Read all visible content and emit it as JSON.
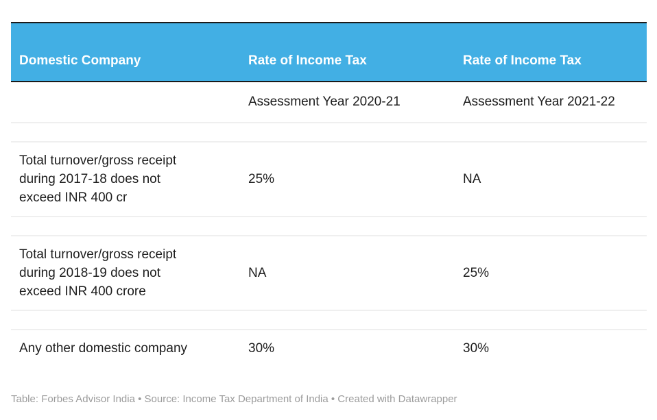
{
  "colors": {
    "header_bg": "#42afe4",
    "header_text": "#ffffff",
    "top_border": "#1a1a1a",
    "header_bottom_border": "#1a1a1a",
    "row_divider": "#efefef",
    "body_text": "#1d1d1d",
    "footer_text": "#9b9b9b",
    "page_bg": "#ffffff"
  },
  "chart_data": {
    "type": "table",
    "title": "",
    "columns": [
      "Domestic Company",
      "Rate of Income Tax",
      "Rate of Income Tax"
    ],
    "subheader": [
      "",
      "Assessment Year 2020-21",
      "Assessment Year 2021-22"
    ],
    "rows": [
      [
        "Total turnover/gross receipt during 2017-18 does not exceed INR 400 cr",
        "25%",
        "NA"
      ],
      [
        "Total turnover/gross receipt during 2018-19 does not exceed INR 400 crore",
        "NA",
        "25%"
      ],
      [
        "Any other domestic company",
        "30%",
        "30%"
      ]
    ],
    "footer": "Table: Forbes Advisor India • Source: Income Tax Department of India • Created with Datawrapper",
    "layout_hints": {
      "grid": "horizontal light dividers only, empty spacer rows between data rows",
      "header_style": "blue band, white bold text, bottom-aligned",
      "legend_position": "none"
    }
  }
}
